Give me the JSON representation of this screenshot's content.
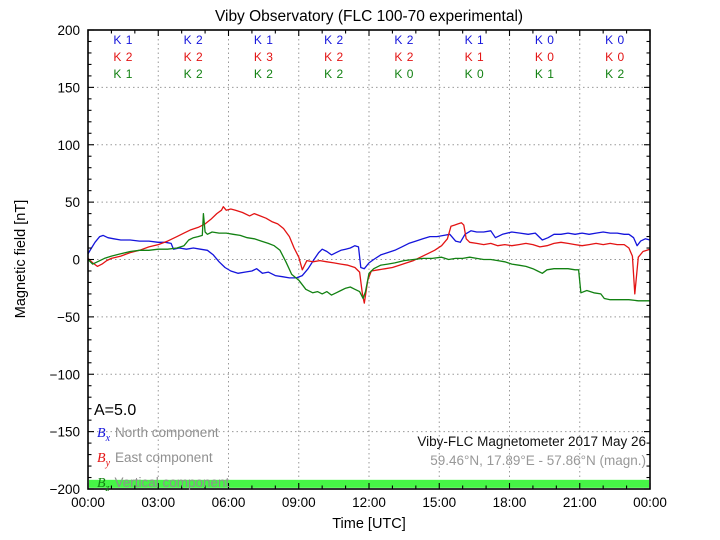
{
  "title": "Viby Observatory (FLC 100-70 experimental)",
  "axes": {
    "ylabel": "Magnetic field [nT]",
    "xlabel": "Time [UTC]",
    "y_tick_labels": [
      "200",
      "150",
      "100",
      "50",
      "0",
      "−50",
      "−100",
      "−150",
      "−200"
    ],
    "x_tick_labels": [
      "00:00",
      "03:00",
      "06:00",
      "09:00",
      "12:00",
      "15:00",
      "18:00",
      "21:00",
      "00:00"
    ]
  },
  "annotations": {
    "a_index": "A=5.0",
    "credit_line1": "Viby-FLC Magnetometer 2017 May 26",
    "credit_line2": "59.46°N, 17.89°E - 57.86°N (magn.)"
  },
  "legend": [
    {
      "symbol": "B",
      "sub": "x",
      "label": "North component",
      "color": "#1414dc"
    },
    {
      "symbol": "B",
      "sub": "y",
      "label": "East component",
      "color": "#e31414"
    },
    {
      "symbol": "B",
      "sub": "z",
      "label": "Vertical component",
      "color": "#128112"
    }
  ],
  "k_indices": {
    "block_hours": 3,
    "prefix": "K",
    "rows": [
      {
        "component": "north",
        "color": "#1414dc",
        "values": [
          1,
          2,
          1,
          2,
          2,
          1,
          0,
          0
        ]
      },
      {
        "component": "east",
        "color": "#e31414",
        "values": [
          2,
          2,
          3,
          2,
          2,
          1,
          0,
          0
        ]
      },
      {
        "component": "vertical",
        "color": "#128112",
        "values": [
          1,
          2,
          2,
          2,
          0,
          0,
          1,
          2
        ]
      }
    ]
  },
  "colors": {
    "north_line": "#1414dc",
    "east_line": "#e31414",
    "vertical_line": "#128112",
    "availability_bar": "#46f546",
    "grid": "#999999",
    "axis": "#000000",
    "gray_text": "#909090"
  },
  "chart_data": {
    "type": "line",
    "title": "Viby Observatory (FLC 100-70 experimental)",
    "xlabel": "Time [UTC]",
    "ylabel": "Magnetic field [nT]",
    "xlim_hours": [
      0,
      24
    ],
    "ylim": [
      -200,
      200
    ],
    "x_major_tick_hours": 3,
    "x_minor_tick_hours": 1,
    "y_major_tick": 50,
    "y_minor_tick": 10,
    "grid": "dotted",
    "series": [
      {
        "name": "Bx North component",
        "color": "#1414dc",
        "x": [
          0,
          0.15,
          0.3,
          0.5,
          0.65,
          0.85,
          1.1,
          1.4,
          1.8,
          2.2,
          2.6,
          3.0,
          3.3,
          3.55,
          3.65,
          3.9,
          4.2,
          4.5,
          4.8,
          5.1,
          5.35,
          5.6,
          5.85,
          6.1,
          6.4,
          6.7,
          7.0,
          7.2,
          7.45,
          7.7,
          8.0,
          8.3,
          8.6,
          8.9,
          9.15,
          9.4,
          9.65,
          9.85,
          10.0,
          10.2,
          10.4,
          10.6,
          10.8,
          11.0,
          11.2,
          11.4,
          11.55,
          11.65,
          11.8,
          12.0,
          12.2,
          12.5,
          12.8,
          13.1,
          13.4,
          13.7,
          14.0,
          14.3,
          14.6,
          14.9,
          15.2,
          15.45,
          15.7,
          15.9,
          16.1,
          16.35,
          16.6,
          16.9,
          17.2,
          17.4,
          17.7,
          18.1,
          18.45,
          18.8,
          19.1,
          19.4,
          19.65,
          19.9,
          20.2,
          20.5,
          20.8,
          21.1,
          21.4,
          21.7,
          22.0,
          22.3,
          22.6,
          22.9,
          23.1,
          23.3,
          23.45,
          23.6,
          23.8,
          24.0
        ],
        "y": [
          5,
          10,
          15,
          20,
          21,
          19,
          18,
          17,
          17,
          16,
          16,
          15,
          15,
          14,
          9,
          10,
          9,
          10,
          9,
          8,
          4,
          -2,
          -7,
          -10,
          -12,
          -11,
          -10,
          -8,
          -12,
          -11,
          -14,
          -15,
          -16,
          -16,
          -14,
          -8,
          0,
          6,
          9,
          7,
          4,
          6,
          8,
          9,
          10,
          12,
          11,
          -7,
          -8,
          -3,
          0,
          4,
          6,
          8,
          11,
          14,
          16,
          18,
          20,
          20,
          21,
          22,
          16,
          15,
          22,
          25,
          24,
          24,
          25,
          19,
          22,
          24,
          23,
          22,
          23,
          17,
          19,
          22,
          22,
          23,
          22,
          23,
          22,
          23,
          24,
          23,
          23,
          22,
          22,
          19,
          12,
          16,
          18,
          17
        ]
      },
      {
        "name": "By East component",
        "color": "#e31414",
        "x": [
          0,
          0.2,
          0.4,
          0.6,
          0.8,
          1.0,
          1.4,
          1.8,
          2.2,
          2.6,
          3.0,
          3.4,
          3.8,
          4.1,
          4.4,
          4.7,
          5.0,
          5.25,
          5.5,
          5.7,
          5.78,
          5.9,
          6.1,
          6.3,
          6.6,
          6.9,
          7.1,
          7.35,
          7.6,
          7.85,
          8.1,
          8.35,
          8.6,
          8.8,
          9.0,
          9.15,
          9.35,
          9.6,
          9.9,
          10.2,
          10.5,
          10.8,
          11.1,
          11.4,
          11.6,
          11.72,
          11.8,
          11.95,
          12.1,
          12.4,
          12.7,
          13.0,
          13.3,
          13.6,
          13.9,
          14.2,
          14.5,
          14.8,
          15.1,
          15.35,
          15.5,
          15.65,
          15.8,
          15.95,
          16.05,
          16.15,
          16.3,
          16.6,
          16.9,
          17.2,
          17.5,
          17.8,
          18.1,
          18.4,
          18.7,
          19.0,
          19.3,
          19.6,
          19.9,
          20.2,
          20.5,
          20.8,
          21.1,
          21.4,
          21.7,
          22.0,
          22.3,
          22.6,
          22.9,
          23.1,
          23.25,
          23.35,
          23.5,
          23.7,
          24.0
        ],
        "y": [
          1,
          -3,
          -6,
          -4,
          -1,
          1,
          3,
          6,
          8,
          11,
          13,
          16,
          20,
          23,
          26,
          28,
          31,
          35,
          40,
          43,
          46,
          43,
          44,
          43,
          41,
          38,
          40,
          38,
          36,
          33,
          31,
          27,
          20,
          10,
          2,
          -9,
          -1,
          -2,
          -1,
          -2,
          -3,
          -4,
          -5,
          -7,
          -11,
          -30,
          -38,
          -18,
          -10,
          -9,
          -8,
          -7,
          -5,
          -3,
          -1,
          2,
          5,
          8,
          12,
          18,
          29,
          30,
          31,
          32,
          30,
          18,
          15,
          14,
          13,
          14,
          12,
          13,
          12,
          13,
          14,
          13,
          11,
          12,
          14,
          15,
          14,
          13,
          12,
          13,
          14,
          13,
          14,
          13,
          13,
          10,
          3,
          -30,
          2,
          7,
          9
        ]
      },
      {
        "name": "Bz Vertical component",
        "color": "#128112",
        "x": [
          0,
          0.2,
          0.4,
          0.7,
          1.0,
          1.4,
          1.8,
          2.2,
          2.6,
          3.0,
          3.4,
          3.8,
          4.1,
          4.3,
          4.5,
          4.7,
          4.88,
          4.93,
          5.0,
          5.1,
          5.3,
          5.6,
          5.9,
          6.2,
          6.5,
          6.8,
          7.1,
          7.4,
          7.7,
          7.95,
          8.2,
          8.45,
          8.7,
          9.0,
          9.3,
          9.6,
          9.8,
          10.0,
          10.2,
          10.4,
          10.6,
          10.8,
          11.0,
          11.2,
          11.4,
          11.6,
          11.75,
          11.85,
          12.0,
          12.2,
          12.5,
          12.8,
          13.1,
          13.5,
          13.9,
          14.3,
          14.7,
          15.1,
          15.4,
          15.7,
          16.0,
          16.3,
          16.6,
          16.9,
          17.2,
          17.5,
          17.8,
          18.1,
          18.4,
          18.7,
          19.0,
          19.2,
          19.4,
          19.6,
          19.9,
          20.2,
          20.5,
          20.8,
          20.95,
          21.05,
          21.3,
          21.6,
          21.9,
          22.05,
          22.3,
          22.7,
          23.1,
          23.5,
          24.0
        ],
        "y": [
          0,
          -4,
          -2,
          1,
          3,
          5,
          7,
          8,
          8,
          9,
          9,
          10,
          12,
          17,
          19,
          20,
          21,
          40,
          24,
          22,
          24,
          23,
          23,
          22,
          21,
          19,
          18,
          16,
          14,
          12,
          8,
          -2,
          -13,
          -18,
          -26,
          -29,
          -28,
          -30,
          -28,
          -31,
          -29,
          -27,
          -25,
          -24,
          -26,
          -28,
          -34,
          -28,
          -12,
          -8,
          -5,
          -4,
          -3,
          -1,
          0,
          1,
          1,
          2,
          0,
          1,
          1,
          2,
          1,
          0,
          0,
          -1,
          -2,
          -4,
          -5,
          -6,
          -8,
          -10,
          -12,
          -9,
          -8,
          -8,
          -8,
          -9,
          -9,
          -29,
          -27,
          -29,
          -30,
          -34,
          -35,
          -35,
          -35,
          -36,
          -36
        ]
      }
    ],
    "k_index_rows": [
      {
        "component": "north",
        "values": [
          1,
          2,
          1,
          2,
          2,
          1,
          0,
          0
        ]
      },
      {
        "component": "east",
        "values": [
          2,
          2,
          3,
          2,
          2,
          1,
          0,
          0
        ]
      },
      {
        "component": "vertical",
        "values": [
          1,
          2,
          2,
          2,
          0,
          0,
          1,
          2
        ]
      }
    ],
    "a_index": 5.0,
    "availability_bar": {
      "color": "#46f546",
      "x_hours": [
        0,
        24
      ],
      "y_range": [
        -199,
        -192
      ]
    }
  }
}
